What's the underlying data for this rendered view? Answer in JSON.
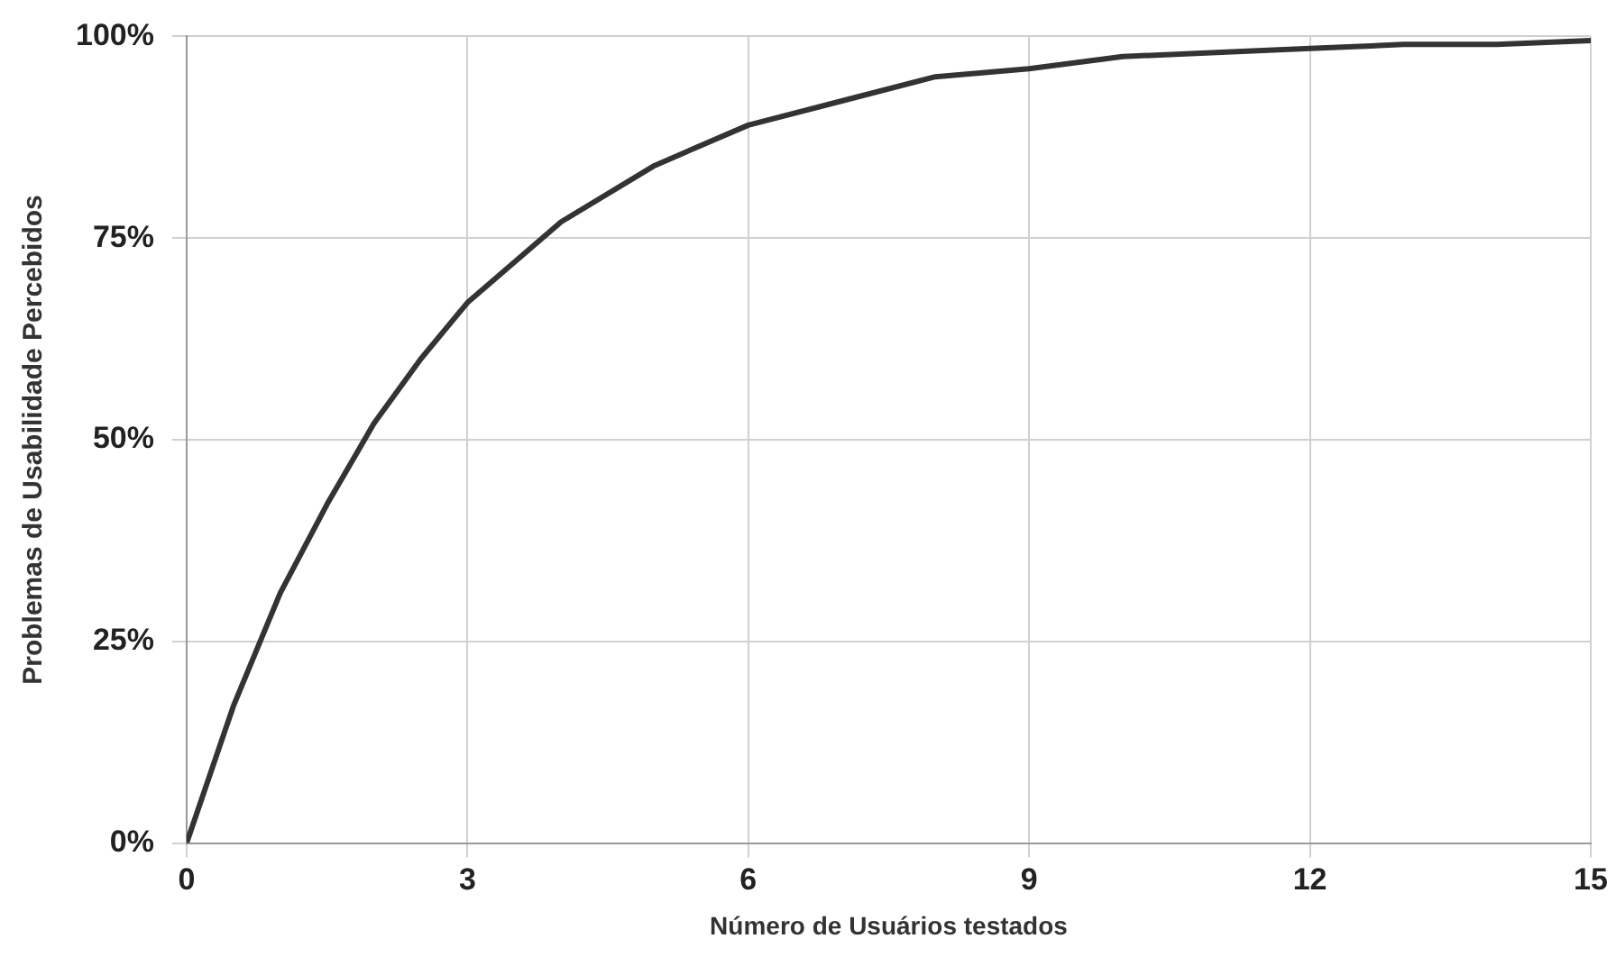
{
  "chart_data": {
    "type": "line",
    "xlabel": "Número de Usuários testados",
    "ylabel": "Problemas de Usabilidade Percebidos",
    "x": [
      0,
      0.5,
      1,
      1.5,
      2,
      2.5,
      3,
      4,
      5,
      6,
      7,
      8,
      9,
      10,
      11,
      12,
      13,
      14,
      15
    ],
    "series": [
      {
        "color": "#333333",
        "values": [
          0,
          17,
          31,
          42,
          52,
          60,
          67,
          77,
          84,
          89,
          92,
          95,
          96,
          97.5,
          98,
          98.5,
          99,
          99,
          99.5
        ]
      }
    ],
    "xlim": [
      0,
      15
    ],
    "xticks": [
      0,
      3,
      6,
      9,
      12,
      15
    ],
    "ylim": [
      0,
      100
    ],
    "yticks": [
      {
        "value": 0,
        "label": "0%"
      },
      {
        "value": 25,
        "label": "25%"
      },
      {
        "value": 50,
        "label": "50%"
      },
      {
        "value": 75,
        "label": "75%"
      },
      {
        "value": 100,
        "label": "100%"
      }
    ],
    "grid": true,
    "legend": false,
    "marker": "none",
    "line_style": "solid"
  }
}
